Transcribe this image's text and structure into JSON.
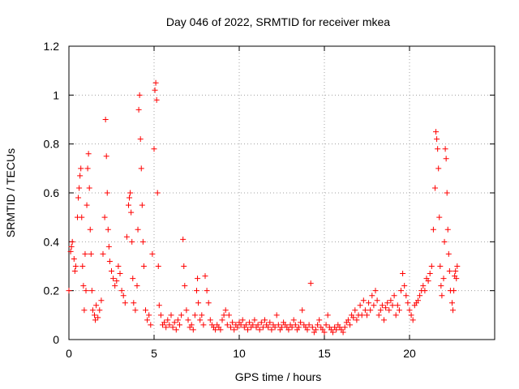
{
  "chart_data": {
    "type": "scatter",
    "title": "Day 046 of 2022, SRMTID for receiver mkea",
    "xlabel": "GPS time / hours",
    "ylabel": "SRMTID / TECUs",
    "xlim": [
      0,
      25
    ],
    "ylim": [
      0,
      1.2
    ],
    "grid": true,
    "marker": "plus",
    "color": "#ff0000",
    "x_ticks": [
      0,
      5,
      10,
      15,
      20
    ],
    "x_tick_labels": [
      "0",
      "5",
      "10",
      "15",
      "20"
    ],
    "y_ticks": [
      0,
      0.2,
      0.4,
      0.6,
      0.8,
      1.0,
      1.2
    ],
    "y_tick_labels": [
      "0",
      "0.2",
      "0.4",
      "0.6",
      "0.8",
      "1",
      "1.2"
    ],
    "series": [
      {
        "name": "SRMTID",
        "x": [
          0.0,
          0.1,
          0.15,
          0.2,
          0.3,
          0.35,
          0.4,
          0.5,
          0.55,
          0.6,
          0.65,
          0.7,
          0.75,
          0.8,
          0.85,
          0.9,
          0.95,
          1.0,
          1.05,
          1.1,
          1.15,
          1.2,
          1.25,
          1.3,
          1.35,
          1.4,
          1.5,
          1.55,
          1.6,
          1.7,
          1.8,
          1.9,
          2.0,
          2.1,
          2.15,
          2.2,
          2.25,
          2.3,
          2.35,
          2.4,
          2.5,
          2.6,
          2.7,
          2.8,
          2.9,
          3.0,
          3.1,
          3.2,
          3.3,
          3.4,
          3.5,
          3.55,
          3.6,
          3.65,
          3.7,
          3.75,
          3.8,
          3.9,
          4.0,
          4.05,
          4.1,
          4.15,
          4.2,
          4.25,
          4.3,
          4.35,
          4.4,
          4.5,
          4.6,
          4.7,
          4.8,
          4.9,
          5.0,
          5.05,
          5.1,
          5.15,
          5.2,
          5.25,
          5.3,
          5.4,
          5.5,
          5.6,
          5.7,
          5.8,
          5.9,
          6.0,
          6.1,
          6.2,
          6.3,
          6.4,
          6.5,
          6.6,
          6.7,
          6.75,
          6.8,
          6.9,
          7.0,
          7.1,
          7.2,
          7.3,
          7.4,
          7.5,
          7.55,
          7.6,
          7.7,
          7.8,
          7.9,
          8.0,
          8.1,
          8.2,
          8.3,
          8.4,
          8.5,
          8.6,
          8.7,
          8.8,
          8.9,
          9.0,
          9.1,
          9.2,
          9.3,
          9.4,
          9.5,
          9.6,
          9.7,
          9.8,
          9.9,
          10.0,
          10.1,
          10.2,
          10.3,
          10.4,
          10.5,
          10.6,
          10.7,
          10.8,
          10.9,
          11.0,
          11.1,
          11.2,
          11.3,
          11.4,
          11.5,
          11.6,
          11.7,
          11.8,
          11.9,
          12.0,
          12.1,
          12.2,
          12.3,
          12.4,
          12.5,
          12.6,
          12.7,
          12.8,
          12.9,
          13.0,
          13.1,
          13.2,
          13.3,
          13.4,
          13.5,
          13.6,
          13.7,
          13.8,
          13.9,
          14.0,
          14.1,
          14.2,
          14.3,
          14.4,
          14.5,
          14.6,
          14.7,
          14.8,
          14.9,
          15.0,
          15.1,
          15.2,
          15.3,
          15.4,
          15.5,
          15.6,
          15.7,
          15.8,
          15.9,
          16.0,
          16.1,
          16.2,
          16.3,
          16.4,
          16.5,
          16.6,
          16.7,
          16.8,
          16.9,
          17.0,
          17.1,
          17.2,
          17.3,
          17.4,
          17.5,
          17.6,
          17.7,
          17.8,
          17.9,
          18.0,
          18.1,
          18.2,
          18.3,
          18.4,
          18.5,
          18.6,
          18.7,
          18.8,
          18.9,
          19.0,
          19.1,
          19.2,
          19.3,
          19.4,
          19.5,
          19.6,
          19.7,
          19.8,
          19.9,
          20.0,
          20.1,
          20.2,
          20.3,
          20.4,
          20.5,
          20.6,
          20.7,
          20.8,
          20.9,
          21.0,
          21.1,
          21.2,
          21.3,
          21.4,
          21.5,
          21.55,
          21.6,
          21.65,
          21.7,
          21.75,
          21.8,
          21.85,
          21.9,
          22.0,
          22.05,
          22.1,
          22.15,
          22.2,
          22.25,
          22.3,
          22.35,
          22.4,
          22.5,
          22.55,
          22.6,
          22.65,
          22.7,
          22.75,
          22.8
        ],
        "y": [
          0.2,
          0.36,
          0.38,
          0.4,
          0.33,
          0.28,
          0.3,
          0.5,
          0.58,
          0.62,
          0.67,
          0.7,
          0.5,
          0.3,
          0.22,
          0.12,
          0.35,
          0.2,
          0.55,
          0.7,
          0.76,
          0.62,
          0.45,
          0.35,
          0.2,
          0.12,
          0.1,
          0.08,
          0.14,
          0.09,
          0.12,
          0.16,
          0.35,
          0.5,
          0.9,
          0.75,
          0.6,
          0.45,
          0.38,
          0.32,
          0.28,
          0.25,
          0.22,
          0.24,
          0.3,
          0.27,
          0.2,
          0.18,
          0.15,
          0.42,
          0.55,
          0.58,
          0.6,
          0.52,
          0.4,
          0.25,
          0.15,
          0.12,
          0.22,
          0.45,
          0.94,
          1.0,
          0.82,
          0.7,
          0.55,
          0.4,
          0.3,
          0.12,
          0.08,
          0.1,
          0.06,
          0.35,
          0.78,
          1.02,
          1.05,
          0.98,
          0.6,
          0.3,
          0.14,
          0.1,
          0.06,
          0.07,
          0.05,
          0.08,
          0.06,
          0.1,
          0.05,
          0.07,
          0.04,
          0.08,
          0.06,
          0.1,
          0.41,
          0.3,
          0.22,
          0.12,
          0.08,
          0.05,
          0.06,
          0.04,
          0.1,
          0.2,
          0.25,
          0.15,
          0.08,
          0.1,
          0.06,
          0.26,
          0.2,
          0.15,
          0.08,
          0.06,
          0.05,
          0.04,
          0.06,
          0.05,
          0.04,
          0.08,
          0.1,
          0.12,
          0.06,
          0.1,
          0.05,
          0.07,
          0.04,
          0.06,
          0.05,
          0.07,
          0.06,
          0.08,
          0.05,
          0.06,
          0.04,
          0.07,
          0.05,
          0.06,
          0.08,
          0.05,
          0.06,
          0.04,
          0.07,
          0.05,
          0.08,
          0.06,
          0.05,
          0.07,
          0.04,
          0.06,
          0.05,
          0.1,
          0.06,
          0.04,
          0.05,
          0.07,
          0.06,
          0.05,
          0.04,
          0.06,
          0.05,
          0.08,
          0.06,
          0.04,
          0.05,
          0.07,
          0.12,
          0.06,
          0.05,
          0.04,
          0.06,
          0.23,
          0.05,
          0.03,
          0.04,
          0.06,
          0.08,
          0.05,
          0.04,
          0.03,
          0.06,
          0.1,
          0.05,
          0.04,
          0.03,
          0.05,
          0.04,
          0.06,
          0.05,
          0.04,
          0.03,
          0.05,
          0.07,
          0.08,
          0.06,
          0.1,
          0.09,
          0.12,
          0.08,
          0.1,
          0.14,
          0.1,
          0.16,
          0.12,
          0.1,
          0.15,
          0.12,
          0.18,
          0.14,
          0.2,
          0.16,
          0.1,
          0.12,
          0.14,
          0.08,
          0.13,
          0.15,
          0.12,
          0.16,
          0.14,
          0.18,
          0.1,
          0.14,
          0.12,
          0.2,
          0.27,
          0.22,
          0.18,
          0.15,
          0.12,
          0.1,
          0.08,
          0.14,
          0.15,
          0.16,
          0.18,
          0.2,
          0.22,
          0.2,
          0.25,
          0.24,
          0.27,
          0.3,
          0.45,
          0.62,
          0.85,
          0.82,
          0.78,
          0.7,
          0.5,
          0.3,
          0.22,
          0.18,
          0.25,
          0.4,
          0.78,
          0.74,
          0.6,
          0.45,
          0.35,
          0.28,
          0.2,
          0.15,
          0.12,
          0.2,
          0.26,
          0.28,
          0.25,
          0.3
        ]
      }
    ]
  }
}
